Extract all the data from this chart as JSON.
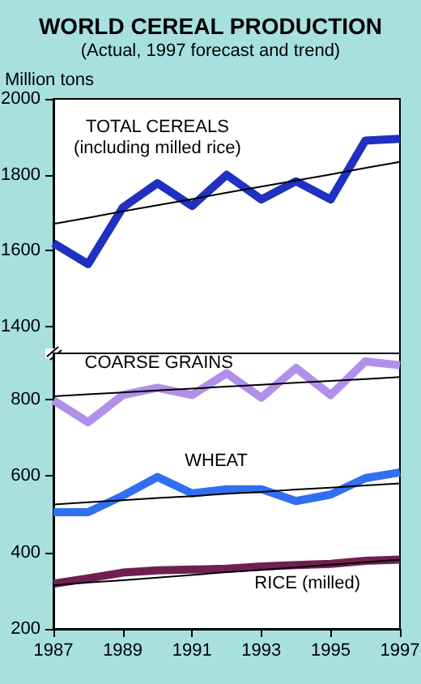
{
  "chart_data": [
    {
      "type": "line",
      "title": "WORLD CEREAL PRODUCTION",
      "subtitle": "(Actual, 1997 forecast and trend)",
      "ylabel": "Million tons",
      "annotations": [
        "(including milled rice)"
      ],
      "x": [
        1987,
        1988,
        1989,
        1990,
        1991,
        1992,
        1993,
        1994,
        1995,
        1996,
        1997
      ],
      "xlim": [
        1987,
        1997
      ],
      "ylim": [
        1330,
        2000
      ],
      "yticks": [
        1400,
        1600,
        1800,
        2000
      ],
      "tick_labels": "y",
      "series": [
        {
          "name": "TOTAL CEREALS",
          "color": "#2030c0",
          "values": [
            1620,
            1565,
            1714,
            1778,
            1718,
            1800,
            1735,
            1783,
            1735,
            1890,
            1895
          ]
        },
        {
          "color": "#000000",
          "values": [
            1671,
            1687,
            1704,
            1720,
            1736,
            1753,
            1769,
            1785,
            1801,
            1818,
            1834
          ]
        }
      ]
    },
    {
      "type": "line",
      "x": [
        1987,
        1988,
        1989,
        1990,
        1991,
        1992,
        1993,
        1994,
        1995,
        1996,
        1997
      ],
      "xlim": [
        1987,
        1997
      ],
      "xticks": [
        1987,
        1989,
        1991,
        1993,
        1995,
        1997
      ],
      "ylim": [
        200,
        920
      ],
      "yticks": [
        200,
        400,
        600,
        800
      ],
      "series": [
        {
          "name": "COARSE GRAINS",
          "color": "#b090e8",
          "values": [
            797,
            740,
            811,
            830,
            811,
            868,
            804,
            882,
            811,
            899,
            889
          ]
        },
        {
          "name": "WHEAT",
          "color": "#3070f0",
          "values": [
            505,
            505,
            548,
            597,
            554,
            565,
            565,
            534,
            551,
            594,
            609
          ]
        },
        {
          "name": "RICE (milled)",
          "color": "#702050",
          "values": [
            318,
            332,
            347,
            353,
            355,
            357,
            363,
            367,
            370,
            378,
            381
          ]
        },
        {
          "color": "#000000",
          "values": [
            808,
            813,
            818,
            823,
            828,
            833,
            838,
            843,
            848,
            853,
            858
          ]
        },
        {
          "color": "#000000",
          "values": [
            525,
            531,
            536,
            542,
            547,
            553,
            558,
            564,
            569,
            575,
            580
          ]
        },
        {
          "color": "#000000",
          "values": [
            314,
            321,
            327,
            334,
            341,
            348,
            354,
            361,
            368,
            374,
            381
          ]
        }
      ]
    }
  ]
}
